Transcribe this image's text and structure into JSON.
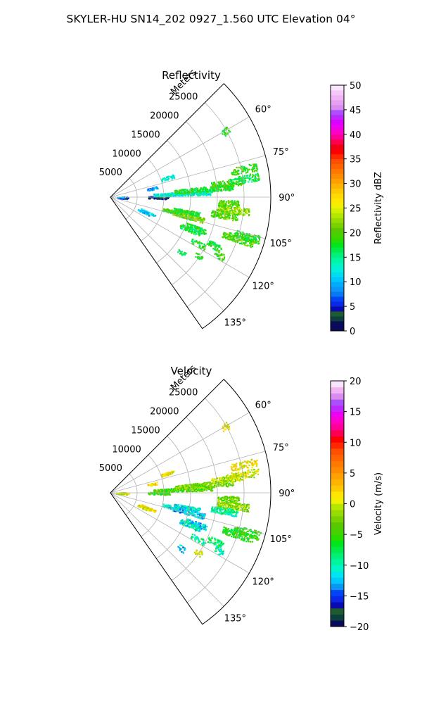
{
  "figure": {
    "suptitle": "SKYLER-HU  SN14_202  0927_1.560 UTC Elevation 04°"
  },
  "chart_data": [
    {
      "type": "heatmap",
      "projection": "polar-sector",
      "title": "Reflectivity",
      "range_axis_label": "Meters",
      "range_ticks": [
        5000,
        10000,
        15000,
        20000,
        25000
      ],
      "range_tick_labels": [
        "5000",
        "10000",
        "15000",
        "20000",
        "25000"
      ],
      "rlim": [
        0,
        30000
      ],
      "azimuth_ticks": [
        60,
        75,
        90,
        105,
        120,
        135
      ],
      "azimuth_tick_labels": [
        "60°",
        "75°",
        "90°",
        "105°",
        "120°",
        "135°"
      ],
      "azimuth_range": [
        45,
        145
      ],
      "grid": true,
      "colorbar": {
        "label": "Reflectivity dBZ",
        "range": [
          0,
          50
        ],
        "ticks": [
          0,
          5,
          10,
          15,
          20,
          25,
          30,
          35,
          40,
          45,
          50
        ],
        "tick_labels": [
          "0",
          "5",
          "10",
          "15",
          "20",
          "25",
          "30",
          "35",
          "40",
          "45",
          "50"
        ],
        "levels": [
          {
            "from": 0,
            "to": 2,
            "color": "#0a0a5a"
          },
          {
            "from": 2,
            "to": 3,
            "color": "#0d3f3f"
          },
          {
            "from": 3,
            "to": 4,
            "color": "#1c5c2e"
          },
          {
            "from": 4,
            "to": 5,
            "color": "#0a0aaf"
          },
          {
            "from": 5,
            "to": 6,
            "color": "#0a28e6"
          },
          {
            "from": 6,
            "to": 7,
            "color": "#0046f5"
          },
          {
            "from": 7,
            "to": 8,
            "color": "#0a78f5"
          },
          {
            "from": 8,
            "to": 9,
            "color": "#0a96f5"
          },
          {
            "from": 9,
            "to": 10,
            "color": "#00aaff"
          },
          {
            "from": 10,
            "to": 11,
            "color": "#00c8ff"
          },
          {
            "from": 11,
            "to": 12,
            "color": "#00dcf0"
          },
          {
            "from": 12,
            "to": 13,
            "color": "#00f0dc"
          },
          {
            "from": 13,
            "to": 14,
            "color": "#00f5c0"
          },
          {
            "from": 14,
            "to": 15,
            "color": "#00f5a0"
          },
          {
            "from": 15,
            "to": 16,
            "color": "#00f078"
          },
          {
            "from": 16,
            "to": 17,
            "color": "#00eb4b"
          },
          {
            "from": 17,
            "to": 18,
            "color": "#00e61e"
          },
          {
            "from": 18,
            "to": 19,
            "color": "#28dc00"
          },
          {
            "from": 19,
            "to": 20,
            "color": "#46d200"
          },
          {
            "from": 20,
            "to": 21,
            "color": "#5ac800"
          },
          {
            "from": 21,
            "to": 22,
            "color": "#78d200"
          },
          {
            "from": 22,
            "to": 23,
            "color": "#96dc00"
          },
          {
            "from": 23,
            "to": 24,
            "color": "#b4e600"
          },
          {
            "from": 24,
            "to": 25,
            "color": "#d2f000"
          },
          {
            "from": 25,
            "to": 26,
            "color": "#f0f000"
          },
          {
            "from": 26,
            "to": 27,
            "color": "#ffe600"
          },
          {
            "from": 27,
            "to": 28,
            "color": "#ffdc00"
          },
          {
            "from": 28,
            "to": 29,
            "color": "#ffc800"
          },
          {
            "from": 29,
            "to": 30,
            "color": "#ffb400"
          },
          {
            "from": 30,
            "to": 31,
            "color": "#ffa000"
          },
          {
            "from": 31,
            "to": 32,
            "color": "#ff8c00"
          },
          {
            "from": 32,
            "to": 33,
            "color": "#ff7800"
          },
          {
            "from": 33,
            "to": 34,
            "color": "#ff6400"
          },
          {
            "from": 34,
            "to": 35,
            "color": "#ff5000"
          },
          {
            "from": 35,
            "to": 36,
            "color": "#ff2800"
          },
          {
            "from": 36,
            "to": 37,
            "color": "#ff0000"
          },
          {
            "from": 37,
            "to": 38,
            "color": "#f00014"
          },
          {
            "from": 38,
            "to": 39,
            "color": "#ff0050"
          },
          {
            "from": 39,
            "to": 40,
            "color": "#ff0096"
          },
          {
            "from": 40,
            "to": 41,
            "color": "#ff00c8"
          },
          {
            "from": 41,
            "to": 42,
            "color": "#f000f0"
          },
          {
            "from": 42,
            "to": 43,
            "color": "#dc00ff"
          },
          {
            "from": 43,
            "to": 44,
            "color": "#be28ff"
          },
          {
            "from": 44,
            "to": 45,
            "color": "#aa50ff"
          },
          {
            "from": 45,
            "to": 46,
            "color": "#dc8cf0"
          },
          {
            "from": 46,
            "to": 47,
            "color": "#e6a0f0"
          },
          {
            "from": 47,
            "to": 48,
            "color": "#f0b4f5"
          },
          {
            "from": 48,
            "to": 49,
            "color": "#f5c8fa"
          },
          {
            "from": 49,
            "to": 50,
            "color": "#fae6fc"
          }
        ]
      },
      "echo_cells": [
        {
          "az": 91,
          "r1": 1500,
          "r2": 3500,
          "dz": 7,
          "fill": 0.35
        },
        {
          "az": 94,
          "r1": 1000,
          "r2": 3000,
          "dz": 5,
          "fill": 0.3
        },
        {
          "az": 88,
          "r1": 1200,
          "r2": 3000,
          "dz": 9,
          "fill": 0.3
        },
        {
          "az": 90,
          "r1": 7000,
          "r2": 11000,
          "dz": 3,
          "fill": 0.6
        },
        {
          "az": 87,
          "r1": 8000,
          "r2": 19000,
          "dz": 13,
          "fill": 0.7
        },
        {
          "az": 85,
          "r1": 12000,
          "r2": 23000,
          "dz": 18,
          "fill": 0.7
        },
        {
          "az": 83,
          "r1": 19000,
          "r2": 25000,
          "dz": 19,
          "fill": 0.6
        },
        {
          "az": 82,
          "r1": 22000,
          "r2": 28000,
          "dz": 17,
          "fill": 0.5
        },
        {
          "az": 78,
          "r1": 23000,
          "r2": 28000,
          "dz": 19,
          "fill": 0.5
        },
        {
          "az": 93,
          "r1": 20000,
          "r2": 24000,
          "dz": 20,
          "fill": 0.75
        },
        {
          "az": 96,
          "r1": 20000,
          "r2": 26000,
          "dz": 22,
          "fill": 0.8
        },
        {
          "az": 99,
          "r1": 19000,
          "r2": 24000,
          "dz": 20,
          "fill": 0.7
        },
        {
          "az": 101,
          "r1": 12000,
          "r2": 17000,
          "dz": 18,
          "fill": 0.75
        },
        {
          "az": 104,
          "r1": 12000,
          "r2": 18000,
          "dz": 21,
          "fill": 0.8
        },
        {
          "az": 103,
          "r1": 10000,
          "r2": 13000,
          "dz": 19,
          "fill": 0.7
        },
        {
          "az": 110,
          "r1": 15000,
          "r2": 19000,
          "dz": 18,
          "fill": 0.75
        },
        {
          "az": 112,
          "r1": 14000,
          "r2": 18000,
          "dz": 17,
          "fill": 0.7
        },
        {
          "az": 108,
          "r1": 22000,
          "r2": 28000,
          "dz": 20,
          "fill": 0.75
        },
        {
          "az": 106,
          "r1": 24000,
          "r2": 29000,
          "dz": 18,
          "fill": 0.7
        },
        {
          "az": 115,
          "r1": 20000,
          "r2": 23000,
          "dz": 18,
          "fill": 0.6
        },
        {
          "az": 118,
          "r1": 17000,
          "r2": 20000,
          "dz": 17,
          "fill": 0.4
        },
        {
          "az": 112,
          "r1": 6000,
          "r2": 9000,
          "dz": 12,
          "fill": 0.5
        },
        {
          "az": 114,
          "r1": 5500,
          "r2": 8000,
          "dz": 10,
          "fill": 0.45
        },
        {
          "az": 71,
          "r1": 10000,
          "r2": 12500,
          "dz": 13,
          "fill": 0.5
        },
        {
          "az": 78,
          "r1": 7000,
          "r2": 9000,
          "dz": 9,
          "fill": 0.45
        },
        {
          "az": 60,
          "r1": 24000,
          "r2": 25500,
          "dz": 18,
          "fill": 0.5
        },
        {
          "az": 128,
          "r1": 16000,
          "r2": 17500,
          "dz": 16,
          "fill": 0.4
        },
        {
          "az": 124,
          "r1": 19000,
          "r2": 20500,
          "dz": 18,
          "fill": 0.4
        },
        {
          "az": 118,
          "r1": 22000,
          "r2": 24000,
          "dz": 19,
          "fill": 0.4
        }
      ]
    },
    {
      "type": "heatmap",
      "projection": "polar-sector",
      "title": "Velocity",
      "range_axis_label": "Meters",
      "range_ticks": [
        5000,
        10000,
        15000,
        20000,
        25000
      ],
      "range_tick_labels": [
        "5000",
        "10000",
        "15000",
        "20000",
        "25000"
      ],
      "rlim": [
        0,
        30000
      ],
      "azimuth_ticks": [
        60,
        75,
        90,
        105,
        120,
        135
      ],
      "azimuth_tick_labels": [
        "60°",
        "75°",
        "90°",
        "105°",
        "120°",
        "135°"
      ],
      "azimuth_range": [
        45,
        145
      ],
      "grid": true,
      "colorbar": {
        "label": "Velocity (m/s)",
        "range": [
          -20,
          20
        ],
        "ticks": [
          -20,
          -15,
          -10,
          -5,
          0,
          5,
          10,
          15,
          20
        ],
        "tick_labels": [
          "−20",
          "−15",
          "−10",
          "−5",
          "0",
          "5",
          "10",
          "15",
          "20"
        ],
        "levels": [
          {
            "from": -20,
            "to": -19,
            "color": "#0a0a5a"
          },
          {
            "from": -19,
            "to": -18,
            "color": "#0d3f3f"
          },
          {
            "from": -18,
            "to": -17,
            "color": "#1c5c2e"
          },
          {
            "from": -17,
            "to": -16,
            "color": "#0a0aaf"
          },
          {
            "from": -16,
            "to": -15,
            "color": "#0a28e6"
          },
          {
            "from": -15,
            "to": -14,
            "color": "#0046f5"
          },
          {
            "from": -14,
            "to": -13,
            "color": "#0a96f5"
          },
          {
            "from": -13,
            "to": -12,
            "color": "#00c8ff"
          },
          {
            "from": -12,
            "to": -11,
            "color": "#00e6f0"
          },
          {
            "from": -11,
            "to": -10,
            "color": "#00f5c8"
          },
          {
            "from": -10,
            "to": -9,
            "color": "#00f5a0"
          },
          {
            "from": -9,
            "to": -8,
            "color": "#00f078"
          },
          {
            "from": -8,
            "to": -7,
            "color": "#00eb4b"
          },
          {
            "from": -7,
            "to": -6,
            "color": "#00e61e"
          },
          {
            "from": -6,
            "to": -5,
            "color": "#28dc00"
          },
          {
            "from": -5,
            "to": -4,
            "color": "#46d200"
          },
          {
            "from": -4,
            "to": -3,
            "color": "#5ac800"
          },
          {
            "from": -3,
            "to": -2,
            "color": "#78d200"
          },
          {
            "from": -2,
            "to": -1,
            "color": "#96dc00"
          },
          {
            "from": -1,
            "to": 0,
            "color": "#b4e600"
          },
          {
            "from": 0,
            "to": 1,
            "color": "#f0f000"
          },
          {
            "from": 1,
            "to": 2,
            "color": "#ffe600"
          },
          {
            "from": 2,
            "to": 3,
            "color": "#ffc800"
          },
          {
            "from": 3,
            "to": 4,
            "color": "#ffb400"
          },
          {
            "from": 4,
            "to": 5,
            "color": "#ffa000"
          },
          {
            "from": 5,
            "to": 6,
            "color": "#ff8c00"
          },
          {
            "from": 6,
            "to": 7,
            "color": "#ff7800"
          },
          {
            "from": 7,
            "to": 8,
            "color": "#ff6400"
          },
          {
            "from": 8,
            "to": 9,
            "color": "#ff5000"
          },
          {
            "from": 9,
            "to": 10,
            "color": "#ff2800"
          },
          {
            "from": 10,
            "to": 11,
            "color": "#ff0000"
          },
          {
            "from": 11,
            "to": 12,
            "color": "#ff0050"
          },
          {
            "from": 12,
            "to": 13,
            "color": "#ff0096"
          },
          {
            "from": 13,
            "to": 14,
            "color": "#ff00c8"
          },
          {
            "from": 14,
            "to": 15,
            "color": "#f000f0"
          },
          {
            "from": 15,
            "to": 16,
            "color": "#be28ff"
          },
          {
            "from": 16,
            "to": 17,
            "color": "#aa50ff"
          },
          {
            "from": 17,
            "to": 18,
            "color": "#dc8cf0"
          },
          {
            "from": 18,
            "to": 19,
            "color": "#f0b4f5"
          },
          {
            "from": 19,
            "to": 20,
            "color": "#fae6fc"
          }
        ]
      },
      "echo_cells": [
        {
          "az": 91,
          "r1": 1500,
          "r2": 3500,
          "dz": 0,
          "fill": 0.3
        },
        {
          "az": 94,
          "r1": 1000,
          "r2": 3000,
          "dz": -2,
          "fill": 0.3
        },
        {
          "az": 88,
          "r1": 1200,
          "r2": 3000,
          "dz": 1,
          "fill": 0.3
        },
        {
          "az": 90,
          "r1": 7000,
          "r2": 11000,
          "dz": -5,
          "fill": 0.6
        },
        {
          "az": 87,
          "r1": 8000,
          "r2": 19000,
          "dz": -4,
          "fill": 0.7
        },
        {
          "az": 85,
          "r1": 12000,
          "r2": 23000,
          "dz": -3,
          "fill": 0.7
        },
        {
          "az": 83,
          "r1": 19000,
          "r2": 25000,
          "dz": -1,
          "fill": 0.6
        },
        {
          "az": 82,
          "r1": 22000,
          "r2": 28000,
          "dz": 0,
          "fill": 0.5
        },
        {
          "az": 78,
          "r1": 23000,
          "r2": 28000,
          "dz": 1,
          "fill": 0.5
        },
        {
          "az": 93,
          "r1": 20000,
          "r2": 24000,
          "dz": -3,
          "fill": 0.75
        },
        {
          "az": 96,
          "r1": 20000,
          "r2": 26000,
          "dz": -2,
          "fill": 0.8
        },
        {
          "az": 99,
          "r1": 19000,
          "r2": 24000,
          "dz": -9,
          "fill": 0.7
        },
        {
          "az": 101,
          "r1": 12000,
          "r2": 17000,
          "dz": -11,
          "fill": 0.75
        },
        {
          "az": 104,
          "r1": 12000,
          "r2": 18000,
          "dz": -12,
          "fill": 0.8
        },
        {
          "az": 103,
          "r1": 10000,
          "r2": 13000,
          "dz": -11,
          "fill": 0.7
        },
        {
          "az": 110,
          "r1": 15000,
          "r2": 19000,
          "dz": -12,
          "fill": 0.75
        },
        {
          "az": 112,
          "r1": 14000,
          "r2": 18000,
          "dz": -11,
          "fill": 0.7
        },
        {
          "az": 108,
          "r1": 22000,
          "r2": 28000,
          "dz": -6,
          "fill": 0.75
        },
        {
          "az": 106,
          "r1": 24000,
          "r2": 29000,
          "dz": -5,
          "fill": 0.7
        },
        {
          "az": 115,
          "r1": 20000,
          "r2": 23000,
          "dz": -8,
          "fill": 0.6
        },
        {
          "az": 118,
          "r1": 17000,
          "r2": 20000,
          "dz": -9,
          "fill": 0.4
        },
        {
          "az": 112,
          "r1": 6000,
          "r2": 9000,
          "dz": 1,
          "fill": 0.5
        },
        {
          "az": 114,
          "r1": 5500,
          "r2": 8000,
          "dz": 0,
          "fill": 0.45
        },
        {
          "az": 71,
          "r1": 10000,
          "r2": 12500,
          "dz": 1,
          "fill": 0.5
        },
        {
          "az": 78,
          "r1": 7000,
          "r2": 9000,
          "dz": 1,
          "fill": 0.45
        },
        {
          "az": 60,
          "r1": 24000,
          "r2": 25500,
          "dz": 1,
          "fill": 0.5
        },
        {
          "az": 128,
          "r1": 16000,
          "r2": 17500,
          "dz": -12,
          "fill": 0.4
        },
        {
          "az": 124,
          "r1": 19000,
          "r2": 20500,
          "dz": 1,
          "fill": 0.4
        },
        {
          "az": 118,
          "r1": 22000,
          "r2": 24000,
          "dz": -10,
          "fill": 0.4
        }
      ]
    }
  ]
}
